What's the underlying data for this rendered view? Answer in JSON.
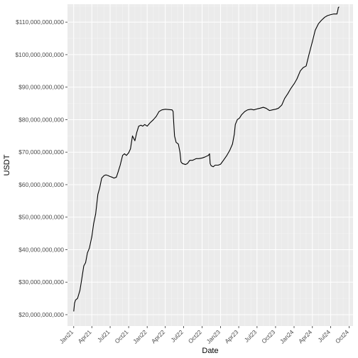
{
  "chart_data": {
    "type": "line",
    "xlabel": "Date",
    "ylabel": "USDT",
    "x_axis_type": "date",
    "xlim": [
      "2020-12-01",
      "2024-10-20"
    ],
    "ylim": [
      16500000000,
      115500000000
    ],
    "grid": true,
    "legend": "none",
    "colors": {
      "panel": "#ebebeb",
      "grid_major": "#ffffff",
      "grid_minor": "#f5f5f5",
      "line": "#000000",
      "tick_text": "#4d4d4d"
    },
    "x_ticks": [
      {
        "date": "2021-01-01",
        "label": "Jan21"
      },
      {
        "date": "2021-04-01",
        "label": "Apr21"
      },
      {
        "date": "2021-07-01",
        "label": "Jul21"
      },
      {
        "date": "2021-10-01",
        "label": "Oct21"
      },
      {
        "date": "2022-01-01",
        "label": "Jan22"
      },
      {
        "date": "2022-04-01",
        "label": "Apr22"
      },
      {
        "date": "2022-07-01",
        "label": "Jul22"
      },
      {
        "date": "2022-10-01",
        "label": "Oct22"
      },
      {
        "date": "2023-01-01",
        "label": "Jan23"
      },
      {
        "date": "2023-04-01",
        "label": "Apr23"
      },
      {
        "date": "2023-07-01",
        "label": "Jul23"
      },
      {
        "date": "2023-10-01",
        "label": "Oct23"
      },
      {
        "date": "2024-01-01",
        "label": "Jan24"
      },
      {
        "date": "2024-04-01",
        "label": "Apr24"
      },
      {
        "date": "2024-07-01",
        "label": "Jul24"
      },
      {
        "date": "2024-10-01",
        "label": "Oct24"
      }
    ],
    "y_ticks": [
      {
        "value": 20000000000,
        "label": "$20,000,000,000"
      },
      {
        "value": 30000000000,
        "label": "$30,000,000,000"
      },
      {
        "value": 40000000000,
        "label": "$40,000,000,000"
      },
      {
        "value": 50000000000,
        "label": "$50,000,000,000"
      },
      {
        "value": 60000000000,
        "label": "$60,000,000,000"
      },
      {
        "value": 70000000000,
        "label": "$70,000,000,000"
      },
      {
        "value": 80000000000,
        "label": "$80,000,000,000"
      },
      {
        "value": 90000000000,
        "label": "$90,000,000,000"
      },
      {
        "value": 100000000000,
        "label": "$100,000,000,000"
      },
      {
        "value": 110000000000,
        "label": "$110,000,000,000"
      }
    ],
    "series": [
      {
        "points": [
          [
            "2021-01-01",
            21.0
          ],
          [
            "2021-01-05",
            23.5
          ],
          [
            "2021-01-10",
            24.5
          ],
          [
            "2021-01-20",
            25.0
          ],
          [
            "2021-02-01",
            27.5
          ],
          [
            "2021-02-10",
            31.0
          ],
          [
            "2021-02-20",
            35.0
          ],
          [
            "2021-03-01",
            36.0
          ],
          [
            "2021-03-10",
            39.0
          ],
          [
            "2021-03-20",
            40.5
          ],
          [
            "2021-04-01",
            44.0
          ],
          [
            "2021-04-10",
            48.0
          ],
          [
            "2021-04-20",
            51.0
          ],
          [
            "2021-05-01",
            57.0
          ],
          [
            "2021-05-10",
            59.0
          ],
          [
            "2021-05-20",
            62.0
          ],
          [
            "2021-06-01",
            62.8
          ],
          [
            "2021-06-10",
            63.0
          ],
          [
            "2021-06-20",
            62.8
          ],
          [
            "2021-07-01",
            62.5
          ],
          [
            "2021-07-10",
            62.3
          ],
          [
            "2021-07-20",
            62.0
          ],
          [
            "2021-08-01",
            62.3
          ],
          [
            "2021-08-10",
            64.0
          ],
          [
            "2021-08-20",
            66.0
          ],
          [
            "2021-09-01",
            69.0
          ],
          [
            "2021-09-10",
            69.5
          ],
          [
            "2021-09-20",
            69.0
          ],
          [
            "2021-10-01",
            69.8
          ],
          [
            "2021-10-10",
            71.0
          ],
          [
            "2021-10-20",
            75.0
          ],
          [
            "2021-11-01",
            73.5
          ],
          [
            "2021-11-10",
            76.0
          ],
          [
            "2021-11-20",
            78.0
          ],
          [
            "2021-12-01",
            78.3
          ],
          [
            "2021-12-10",
            78.0
          ],
          [
            "2021-12-20",
            78.5
          ],
          [
            "2022-01-01",
            78.0
          ],
          [
            "2022-01-15",
            79.0
          ],
          [
            "2022-02-01",
            80.0
          ],
          [
            "2022-02-15",
            81.0
          ],
          [
            "2022-03-01",
            82.5
          ],
          [
            "2022-03-15",
            83.0
          ],
          [
            "2022-04-01",
            83.2
          ],
          [
            "2022-05-05",
            83.0
          ],
          [
            "2022-05-10",
            82.5
          ],
          [
            "2022-05-13",
            79.0
          ],
          [
            "2022-05-17",
            75.0
          ],
          [
            "2022-05-25",
            73.0
          ],
          [
            "2022-06-05",
            72.5
          ],
          [
            "2022-06-13",
            70.0
          ],
          [
            "2022-06-18",
            67.0
          ],
          [
            "2022-06-25",
            66.5
          ],
          [
            "2022-07-10",
            66.2
          ],
          [
            "2022-07-20",
            66.5
          ],
          [
            "2022-08-01",
            67.5
          ],
          [
            "2022-08-15",
            67.5
          ],
          [
            "2022-09-01",
            68.0
          ],
          [
            "2022-09-15",
            68.0
          ],
          [
            "2022-10-01",
            68.2
          ],
          [
            "2022-10-15",
            68.5
          ],
          [
            "2022-11-01",
            69.0
          ],
          [
            "2022-11-07",
            69.5
          ],
          [
            "2022-11-10",
            66.5
          ],
          [
            "2022-11-15",
            65.8
          ],
          [
            "2022-11-25",
            65.5
          ],
          [
            "2022-12-05",
            66.0
          ],
          [
            "2022-12-20",
            66.0
          ],
          [
            "2023-01-01",
            66.3
          ],
          [
            "2023-01-15",
            67.5
          ],
          [
            "2023-02-01",
            69.0
          ],
          [
            "2023-02-15",
            70.5
          ],
          [
            "2023-03-01",
            72.5
          ],
          [
            "2023-03-10",
            75.5
          ],
          [
            "2023-03-15",
            78.5
          ],
          [
            "2023-03-25",
            80.0
          ],
          [
            "2023-04-05",
            80.5
          ],
          [
            "2023-04-15",
            81.5
          ],
          [
            "2023-05-01",
            82.5
          ],
          [
            "2023-05-15",
            83.0
          ],
          [
            "2023-06-01",
            83.2
          ],
          [
            "2023-06-15",
            83.0
          ],
          [
            "2023-07-01",
            83.3
          ],
          [
            "2023-07-15",
            83.5
          ],
          [
            "2023-08-01",
            83.8
          ],
          [
            "2023-08-15",
            83.5
          ],
          [
            "2023-09-01",
            82.8
          ],
          [
            "2023-09-15",
            83.0
          ],
          [
            "2023-10-01",
            83.2
          ],
          [
            "2023-10-15",
            83.5
          ],
          [
            "2023-11-01",
            84.5
          ],
          [
            "2023-11-15",
            86.5
          ],
          [
            "2023-12-01",
            88.0
          ],
          [
            "2023-12-15",
            89.5
          ],
          [
            "2024-01-01",
            91.0
          ],
          [
            "2024-01-15",
            92.5
          ],
          [
            "2024-02-01",
            95.0
          ],
          [
            "2024-02-15",
            96.0
          ],
          [
            "2024-03-01",
            96.5
          ],
          [
            "2024-03-15",
            100.0
          ],
          [
            "2024-04-01",
            104.0
          ],
          [
            "2024-04-15",
            107.5
          ],
          [
            "2024-05-01",
            109.5
          ],
          [
            "2024-05-15",
            110.5
          ],
          [
            "2024-06-01",
            111.5
          ],
          [
            "2024-06-15",
            112.0
          ],
          [
            "2024-07-01",
            112.3
          ],
          [
            "2024-07-15",
            112.5
          ],
          [
            "2024-07-25",
            112.5
          ],
          [
            "2024-08-01",
            112.5
          ],
          [
            "2024-08-05",
            113.5
          ],
          [
            "2024-08-08",
            114.5
          ],
          [
            "2024-08-12",
            114.7
          ]
        ]
      }
    ]
  }
}
